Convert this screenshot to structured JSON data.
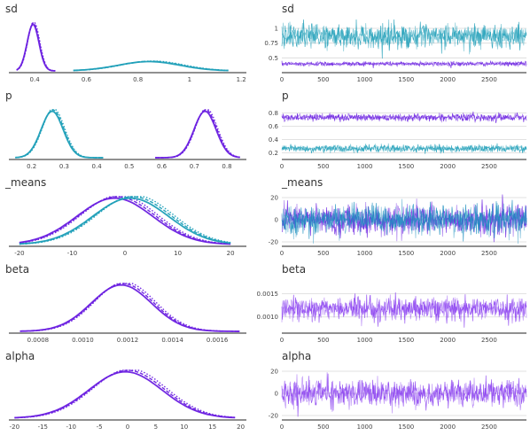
{
  "chart_data": [
    {
      "type": "line",
      "title": "sd",
      "xlabel": "",
      "ylabel": "",
      "xlim": [
        0.3,
        1.22
      ],
      "xticks": [
        0.4,
        0.6,
        0.8,
        1.0,
        1.2
      ],
      "series": [
        {
          "color": "#6a1fe0",
          "curve": "gaussian",
          "mean": 0.395,
          "sd": 0.023,
          "peak": 1.0,
          "range": [
            0.33,
            0.48
          ]
        },
        {
          "color": "#1f9fb8",
          "curve": "gaussian",
          "mean": 0.85,
          "sd": 0.12,
          "peak": 0.2,
          "range": [
            0.55,
            1.15
          ]
        }
      ]
    },
    {
      "type": "line",
      "title": "sd",
      "subtype": "trace",
      "xlim": [
        0,
        2950
      ],
      "ylim": [
        0.25,
        1.15
      ],
      "xticks": [
        0,
        500,
        1000,
        1500,
        2000,
        2500
      ],
      "yticks": [
        0.5,
        0.75,
        1.0
      ],
      "series": [
        {
          "color": "#6a1fe0",
          "mean": 0.4,
          "spread": 0.02
        },
        {
          "color": "#1f9fb8",
          "mean": 0.87,
          "spread": 0.11
        }
      ]
    },
    {
      "type": "line",
      "title": "p",
      "xlim": [
        0.13,
        0.86
      ],
      "xticks": [
        0.2,
        0.3,
        0.4,
        0.5,
        0.6,
        0.7,
        0.8
      ],
      "series": [
        {
          "color": "#1f9fb8",
          "curve": "gaussian",
          "mean": 0.265,
          "sd": 0.034,
          "peak": 1.0,
          "range": [
            0.15,
            0.42
          ]
        },
        {
          "color": "#6a1fe0",
          "curve": "gaussian",
          "mean": 0.735,
          "sd": 0.034,
          "peak": 1.0,
          "range": [
            0.58,
            0.84
          ]
        }
      ]
    },
    {
      "type": "line",
      "title": "p",
      "subtype": "trace",
      "xlim": [
        0,
        2950
      ],
      "ylim": [
        0.1,
        0.9
      ],
      "xticks": [
        0,
        500,
        1000,
        1500,
        2000,
        2500
      ],
      "yticks": [
        0.2,
        0.4,
        0.6,
        0.8
      ],
      "series": [
        {
          "color": "#6a1fe0",
          "mean": 0.735,
          "spread": 0.03
        },
        {
          "color": "#1f9fb8",
          "mean": 0.265,
          "spread": 0.03
        }
      ]
    },
    {
      "type": "line",
      "title": "_means",
      "xlim": [
        -22,
        23
      ],
      "xticks": [
        -20,
        -10,
        0,
        10,
        20
      ],
      "series": [
        {
          "color": "#6a1fe0",
          "curve": "gaussian",
          "mean": -1.5,
          "sd": 7.2,
          "peak": 1.0,
          "range": [
            -20,
            20
          ]
        },
        {
          "color": "#1f9fb8",
          "curve": "gaussian",
          "mean": 1.5,
          "sd": 7.2,
          "peak": 1.0,
          "range": [
            -20,
            20
          ]
        }
      ]
    },
    {
      "type": "line",
      "title": "_means",
      "subtype": "trace",
      "xlim": [
        0,
        2950
      ],
      "ylim": [
        -24,
        24
      ],
      "xticks": [
        0,
        500,
        1000,
        1500,
        2000,
        2500
      ],
      "yticks": [
        -20,
        0,
        20
      ],
      "series": [
        {
          "color": "#6a1fe0",
          "mean": 0,
          "spread": 7
        },
        {
          "color": "#1f8fc0",
          "mean": 0,
          "spread": 7
        }
      ]
    },
    {
      "type": "line",
      "title": "beta",
      "xlim": [
        0.00067,
        0.00173
      ],
      "xticks": [
        0.0008,
        0.001,
        0.0012,
        0.0014,
        0.0016
      ],
      "xticklabels": [
        "0.0008",
        "0.0010",
        "0.0012",
        "0.0014",
        "0.0016"
      ],
      "series": [
        {
          "color": "#6a1fe0",
          "curve": "gaussian",
          "mean": 0.00118,
          "sd": 0.000135,
          "peak": 1.0,
          "range": [
            0.00072,
            0.0017
          ]
        }
      ]
    },
    {
      "type": "line",
      "title": "beta",
      "subtype": "trace",
      "xlim": [
        0,
        2950
      ],
      "ylim": [
        0.00065,
        0.0018
      ],
      "xticks": [
        0,
        500,
        1000,
        1500,
        2000,
        2500
      ],
      "yticks": [
        0.001,
        0.0015
      ],
      "yticklabels": [
        "0.0010",
        "0.0015"
      ],
      "series": [
        {
          "color": "#8a3ff0",
          "mean": 0.00118,
          "spread": 0.00013
        }
      ]
    },
    {
      "type": "line",
      "title": "alpha",
      "xlim": [
        -21,
        21
      ],
      "xticks": [
        -20,
        -15,
        -10,
        -5,
        0,
        5,
        10,
        15,
        20
      ],
      "series": [
        {
          "color": "#6a1fe0",
          "curve": "gaussian",
          "mean": 0,
          "sd": 6.5,
          "peak": 1.0,
          "range": [
            -20,
            19
          ]
        }
      ]
    },
    {
      "type": "line",
      "title": "alpha",
      "subtype": "trace",
      "xlim": [
        0,
        2950
      ],
      "ylim": [
        -24,
        24
      ],
      "xticks": [
        0,
        500,
        1000,
        1500,
        2000,
        2500
      ],
      "yticks": [
        -20,
        0,
        20
      ],
      "series": [
        {
          "color": "#8a3ff0",
          "mean": 0,
          "spread": 6.5
        }
      ]
    }
  ]
}
